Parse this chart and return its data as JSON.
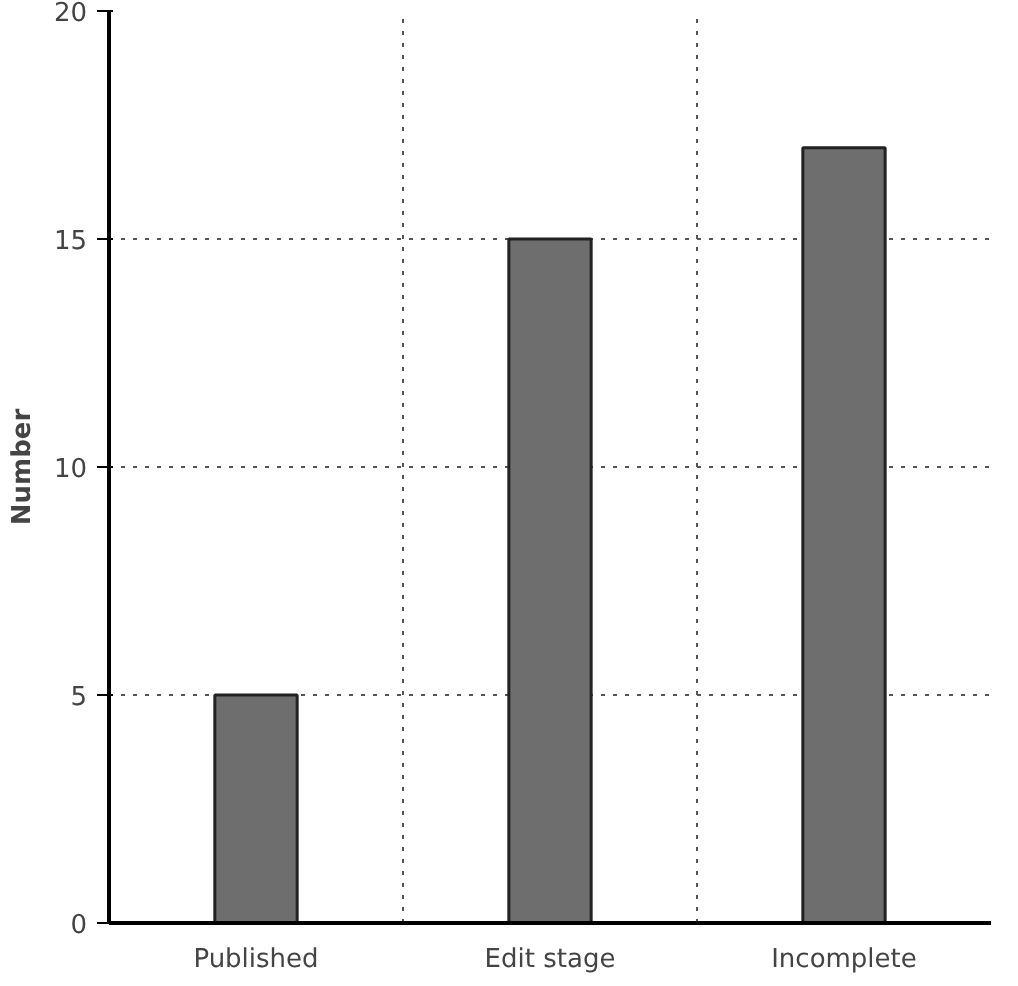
{
  "chart_data": {
    "type": "bar",
    "ylabel": "Number",
    "categories": [
      "Published",
      "Edit stage",
      "Incomplete"
    ],
    "values": [
      5,
      15,
      17
    ],
    "color": "#6e6e6e",
    "ylim": [
      0,
      20
    ],
    "yticks": [
      0,
      5,
      10,
      15,
      20
    ],
    "grid": true,
    "line_style": "dotted"
  }
}
